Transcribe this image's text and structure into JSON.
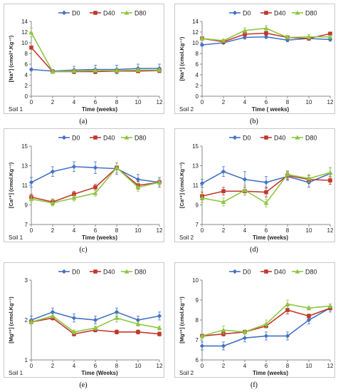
{
  "chart_data": [
    {
      "type": "line",
      "id": "a",
      "sub_label": "(a)",
      "soil_label": "Soil 1",
      "xlabel": "Time (weeks)",
      "ylabel": "[Na⁺] (cmol⁺.Kg⁻¹)",
      "x": [
        0,
        2,
        4,
        6,
        8,
        10,
        12
      ],
      "xlim": [
        0,
        12
      ],
      "ylim": [
        0,
        14
      ],
      "yticks": [
        0,
        2,
        4,
        6,
        8,
        10,
        12,
        14
      ],
      "xticks": [
        0,
        2,
        4,
        6,
        8,
        10,
        12
      ],
      "legend": "top",
      "series": [
        {
          "name": "D0",
          "color": "#4472c4",
          "marker": "diamond",
          "values": [
            5.0,
            4.7,
            4.9,
            5.0,
            5.0,
            5.2,
            5.2
          ],
          "err": [
            0.2,
            0.3,
            0.7,
            0.8,
            0.8,
            0.8,
            0.8
          ]
        },
        {
          "name": "D40",
          "color": "#c0392b",
          "marker": "square",
          "values": [
            9.1,
            4.6,
            4.6,
            4.6,
            4.7,
            4.7,
            4.8
          ],
          "err": [
            0.3,
            0.3,
            0.3,
            0.3,
            0.3,
            0.3,
            0.3
          ]
        },
        {
          "name": "D80",
          "color": "#8dc641",
          "marker": "triangle",
          "values": [
            11.9,
            4.6,
            4.7,
            4.8,
            4.8,
            4.9,
            4.9
          ],
          "err": [
            0.8,
            0.3,
            0.3,
            0.3,
            0.3,
            0.3,
            0.3
          ]
        }
      ]
    },
    {
      "type": "line",
      "id": "b",
      "sub_label": "(b)",
      "soil_label": "Soil 2",
      "xlabel": "Time ( weeks)",
      "ylabel": "[Na⁺] (cmol.Kg⁻¹)",
      "x": [
        0,
        2,
        4,
        6,
        8,
        10,
        12
      ],
      "xlim": [
        0,
        12
      ],
      "ylim": [
        0,
        14
      ],
      "yticks": [
        0,
        2,
        4,
        6,
        8,
        10,
        12,
        14
      ],
      "xticks": [
        0,
        2,
        4,
        6,
        8,
        10,
        12
      ],
      "legend": "top",
      "series": [
        {
          "name": "D0",
          "color": "#4472c4",
          "marker": "diamond",
          "values": [
            9.6,
            10.0,
            11.0,
            11.1,
            10.5,
            10.8,
            10.6
          ],
          "err": [
            0.2,
            0.2,
            0.3,
            0.3,
            0.3,
            0.3,
            0.3
          ]
        },
        {
          "name": "D40",
          "color": "#c0392b",
          "marker": "square",
          "values": [
            10.8,
            10.2,
            11.6,
            11.8,
            11.0,
            10.8,
            11.7
          ],
          "err": [
            0.2,
            0.2,
            0.3,
            0.4,
            0.3,
            0.3,
            0.3
          ]
        },
        {
          "name": "D80",
          "color": "#8dc641",
          "marker": "triangle",
          "values": [
            10.8,
            10.4,
            12.3,
            12.7,
            11.0,
            11.1,
            11.1
          ],
          "err": [
            0.2,
            0.3,
            0.5,
            0.5,
            0.3,
            0.4,
            0.3
          ]
        }
      ]
    },
    {
      "type": "line",
      "id": "c",
      "sub_label": "(c)",
      "soil_label": "Soil 1",
      "xlabel": "Time (weeks)",
      "ylabel": "[Ca²⁺] (cmol.Kg⁻¹)",
      "x": [
        0,
        2,
        4,
        6,
        8,
        10,
        12
      ],
      "xlim": [
        0,
        12
      ],
      "ylim": [
        7,
        15
      ],
      "yticks": [
        7,
        9,
        11,
        13,
        15
      ],
      "xticks": [
        0,
        2,
        4,
        6,
        8,
        10,
        12
      ],
      "legend": "top",
      "series": [
        {
          "name": "D0",
          "color": "#4472c4",
          "marker": "diamond",
          "values": [
            11.3,
            12.4,
            12.9,
            12.8,
            12.7,
            11.6,
            11.3
          ],
          "err": [
            0.5,
            0.5,
            0.5,
            0.6,
            0.6,
            0.5,
            0.5
          ]
        },
        {
          "name": "D40",
          "color": "#c0392b",
          "marker": "square",
          "values": [
            9.8,
            9.3,
            10.1,
            10.8,
            12.8,
            11.0,
            11.3
          ],
          "err": [
            0.3,
            0.3,
            0.3,
            0.3,
            0.5,
            0.4,
            0.3
          ]
        },
        {
          "name": "D80",
          "color": "#8dc641",
          "marker": "triangle",
          "values": [
            9.6,
            9.2,
            9.7,
            10.2,
            12.8,
            10.8,
            11.3
          ],
          "err": [
            0.3,
            0.3,
            0.3,
            0.3,
            0.5,
            0.4,
            0.3
          ]
        }
      ]
    },
    {
      "type": "line",
      "id": "d",
      "sub_label": "(d)",
      "soil_label": "Soil 2",
      "xlabel": "Time (weeks)",
      "ylabel": "[Ca²⁺] (cmol.Kg⁻¹)",
      "x": [
        0,
        2,
        4,
        6,
        8,
        10,
        12
      ],
      "xlim": [
        0,
        12
      ],
      "ylim": [
        7,
        15
      ],
      "yticks": [
        7,
        9,
        11,
        13,
        15
      ],
      "xticks": [
        0,
        2,
        4,
        6,
        8,
        10,
        12
      ],
      "legend": "top",
      "series": [
        {
          "name": "D0",
          "color": "#4472c4",
          "marker": "diamond",
          "values": [
            11.2,
            12.4,
            11.6,
            11.3,
            11.9,
            11.3,
            12.2
          ],
          "err": [
            0.4,
            0.5,
            0.8,
            0.6,
            0.4,
            0.5,
            0.6
          ]
        },
        {
          "name": "D40",
          "color": "#c0392b",
          "marker": "square",
          "values": [
            9.9,
            10.4,
            10.4,
            10.3,
            12.0,
            11.6,
            11.5
          ],
          "err": [
            0.4,
            0.4,
            0.4,
            0.5,
            0.4,
            0.4,
            0.4
          ]
        },
        {
          "name": "D80",
          "color": "#8dc641",
          "marker": "triangle",
          "values": [
            9.7,
            9.3,
            10.5,
            9.2,
            12.1,
            11.7,
            12.3
          ],
          "err": [
            0.4,
            0.4,
            0.5,
            0.4,
            0.4,
            0.4,
            0.5
          ]
        }
      ]
    },
    {
      "type": "line",
      "id": "e",
      "sub_label": "(e)",
      "soil_label": "Soil 1",
      "xlabel": "Time (Weeks)",
      "ylabel": "[Mg²⁺] (cmol.Kg⁻¹)",
      "x": [
        0,
        2,
        4,
        6,
        8,
        10,
        12
      ],
      "xlim": [
        0,
        12
      ],
      "ylim": [
        1,
        3
      ],
      "yticks": [
        1,
        2,
        3
      ],
      "xticks": [
        0,
        2,
        4,
        6,
        8,
        10,
        12
      ],
      "legend": "top",
      "series": [
        {
          "name": "D0",
          "color": "#4472c4",
          "marker": "diamond",
          "values": [
            2.0,
            2.2,
            2.05,
            2.0,
            2.2,
            2.0,
            2.1
          ],
          "err": [
            0.1,
            0.1,
            0.1,
            0.1,
            0.1,
            0.1,
            0.1
          ]
        },
        {
          "name": "D40",
          "color": "#c0392b",
          "marker": "square",
          "values": [
            1.95,
            2.05,
            1.65,
            1.75,
            1.7,
            1.7,
            1.65
          ],
          "err": [
            0.05,
            0.05,
            0.05,
            0.05,
            0.05,
            0.05,
            0.05
          ]
        },
        {
          "name": "D80",
          "color": "#8dc641",
          "marker": "triangle",
          "values": [
            1.95,
            2.1,
            1.7,
            1.8,
            2.05,
            1.9,
            1.8
          ],
          "err": [
            0.05,
            0.05,
            0.05,
            0.05,
            0.1,
            0.05,
            0.05
          ]
        }
      ]
    },
    {
      "type": "line",
      "id": "f",
      "sub_label": "(f)",
      "soil_label": "Soil 2",
      "xlabel": "Time (weeks)",
      "ylabel": "[Mg²⁺] (cmol.Kg⁻¹)",
      "x": [
        0,
        2,
        4,
        6,
        8,
        10,
        12
      ],
      "xlim": [
        0,
        12
      ],
      "ylim": [
        6,
        10
      ],
      "yticks": [
        6,
        7,
        8,
        9,
        10
      ],
      "xticks": [
        0,
        2,
        4,
        6,
        8,
        10,
        12
      ],
      "legend": "top",
      "series": [
        {
          "name": "D0",
          "color": "#4472c4",
          "marker": "diamond",
          "values": [
            6.7,
            6.7,
            7.1,
            7.2,
            7.2,
            8.0,
            8.6
          ],
          "err": [
            0.2,
            0.2,
            0.2,
            0.2,
            0.2,
            0.2,
            0.2
          ]
        },
        {
          "name": "D40",
          "color": "#c0392b",
          "marker": "square",
          "values": [
            7.2,
            7.3,
            7.4,
            7.7,
            8.5,
            8.2,
            8.6
          ],
          "err": [
            0.1,
            0.1,
            0.1,
            0.1,
            0.2,
            0.1,
            0.1
          ]
        },
        {
          "name": "D80",
          "color": "#8dc641",
          "marker": "triangle",
          "values": [
            7.2,
            7.5,
            7.4,
            7.8,
            8.8,
            8.6,
            8.7
          ],
          "err": [
            0.1,
            0.2,
            0.1,
            0.2,
            0.2,
            0.1,
            0.1
          ]
        }
      ]
    }
  ]
}
